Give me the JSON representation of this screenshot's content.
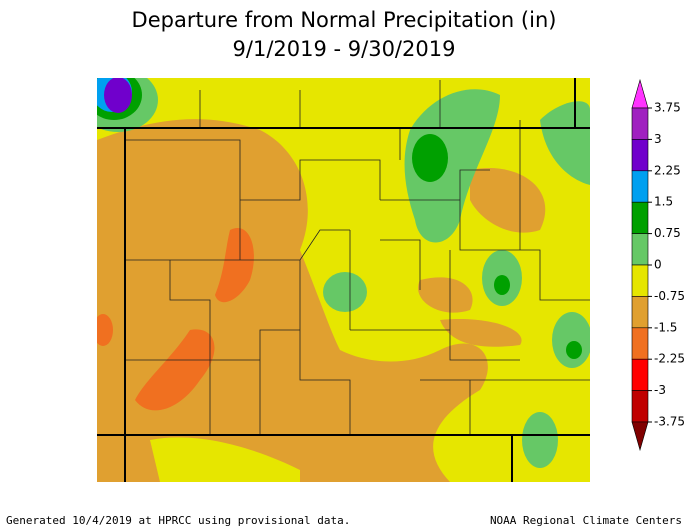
{
  "map": {
    "title": [
      "Departure from Normal Precipitation (in)",
      "9/1/2019 - 9/30/2019"
    ],
    "legend": {
      "ticks": [
        3.75,
        3,
        2.25,
        1.5,
        0.75,
        0,
        -0.75,
        -1.5,
        -2.25,
        -3,
        -3.75
      ],
      "colors": [
        "#ff33ff",
        "#a020c0",
        "#7000cc",
        "#00a0f0",
        "#00a000",
        "#66c866",
        "#e6e600",
        "#e0a030",
        "#f07020",
        "#ff0000",
        "#c00000",
        "#800000"
      ]
    },
    "footer": {
      "left": "Generated 10/4/2019 at HPRCC using provisional data.",
      "right": "NOAA Regional Climate Centers"
    }
  }
}
